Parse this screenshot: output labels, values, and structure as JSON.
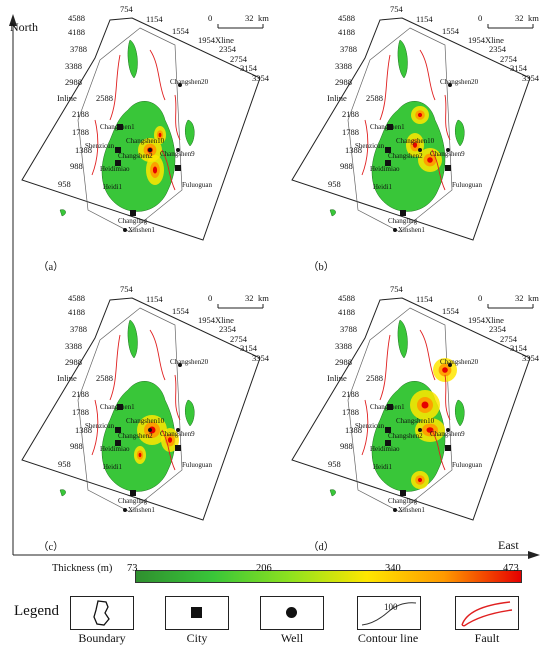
{
  "axes": {
    "north_label": "North",
    "east_label": "East"
  },
  "panels": [
    {
      "id": "a",
      "caption": "（a）"
    },
    {
      "id": "b",
      "caption": "（b）"
    },
    {
      "id": "c",
      "caption": "（c）"
    },
    {
      "id": "d",
      "caption": "（d）"
    }
  ],
  "map_labels": {
    "inline_label": "Inline",
    "xline_label": "Xline",
    "inline_ticks": [
      "4588",
      "4188",
      "3788",
      "3388",
      "2988",
      "2588",
      "2188",
      "1788",
      "1388",
      "988",
      "958"
    ],
    "xline_ticks": [
      "754",
      "1154",
      "1554",
      "1954",
      "2354",
      "2754",
      "3154",
      "3354"
    ],
    "scale_start": "0",
    "scale_end": "32",
    "scale_unit": "km",
    "wells": [
      "Changshen20",
      "Changshen1",
      "Changshen10",
      "Changshen9",
      "Changshen2",
      "Shenzicun",
      "Heidimiao",
      "Heidi1",
      "Fuluoguan",
      "Changling",
      "Xinshen1"
    ]
  },
  "colorbar": {
    "title": "Thickness (m)",
    "min": 73,
    "max": 473,
    "ticks": [
      "73",
      "206",
      "340",
      "473"
    ],
    "colors": [
      "#2f8f2f",
      "#39c639",
      "#8ee21f",
      "#ffe600",
      "#ff9900",
      "#e60000"
    ]
  },
  "legend": {
    "title": "Legend",
    "items": [
      {
        "name": "boundary",
        "label": "Boundary"
      },
      {
        "name": "city",
        "label": "City"
      },
      {
        "name": "well",
        "label": "Well"
      },
      {
        "name": "contour",
        "label": "Contour line",
        "sample": "100"
      },
      {
        "name": "fault",
        "label": "Fault"
      }
    ]
  }
}
